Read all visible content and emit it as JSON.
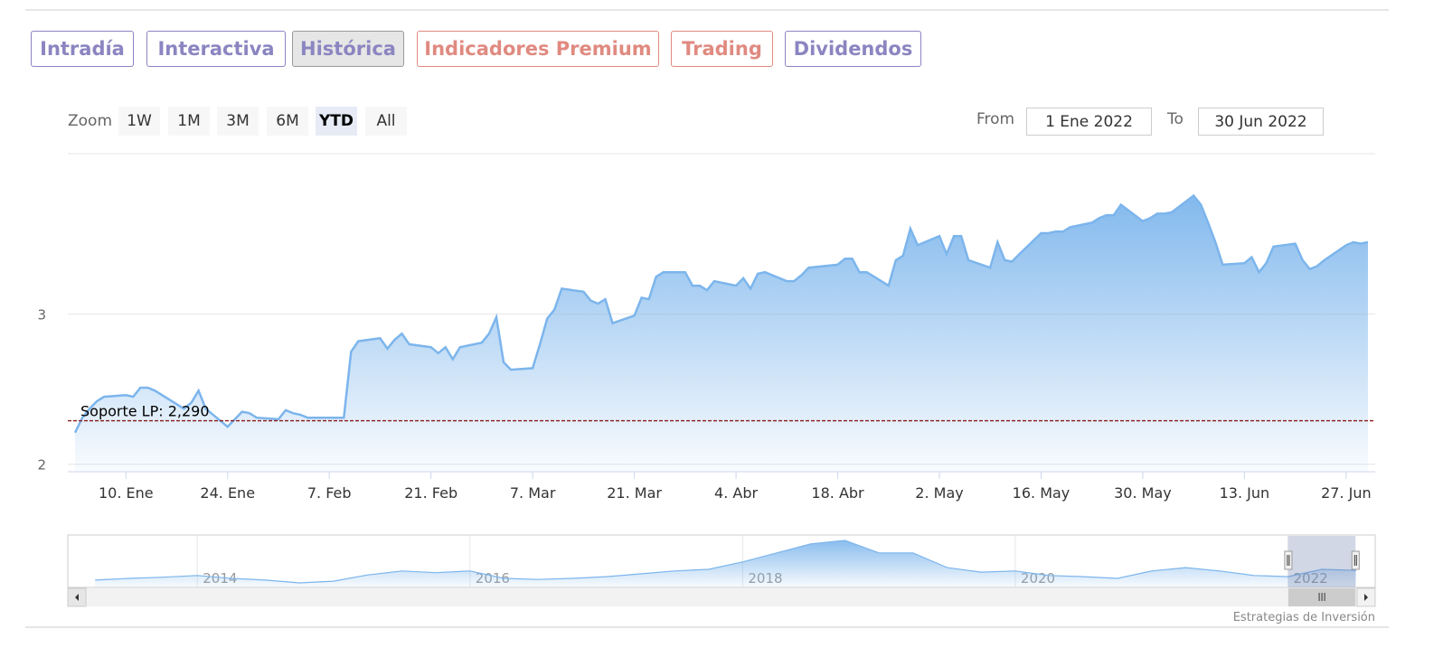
{
  "tabs": [
    "Intradía",
    "Interactiva",
    "Histórica",
    "Indicadores Premium",
    "Trading",
    "Dividendos"
  ],
  "zoom": {
    "label": "Zoom",
    "buttons": [
      "1W",
      "1M",
      "3M",
      "6M",
      "YTD",
      "All"
    ],
    "selected": 4
  },
  "range": {
    "from_label": "From",
    "from": "1 Ene 2022",
    "to_label": "To",
    "to": "30 Jun 2022"
  },
  "credits": "Estrategias de Inversión",
  "chart_data": {
    "type": "area",
    "color": "#7cb5ec",
    "xlim": [
      "2022-01-02",
      "2022-07-01"
    ],
    "ylim": [
      1.95,
      4.07
    ],
    "yticks": [
      2,
      3
    ],
    "grid": true,
    "xticks": [
      {
        "value": "2022-01-10",
        "label": "10. Ene"
      },
      {
        "value": "2022-01-24",
        "label": "24. Ene"
      },
      {
        "value": "2022-02-07",
        "label": "7. Feb"
      },
      {
        "value": "2022-02-21",
        "label": "21. Feb"
      },
      {
        "value": "2022-03-07",
        "label": "7. Mar"
      },
      {
        "value": "2022-03-21",
        "label": "21. Mar"
      },
      {
        "value": "2022-04-04",
        "label": "4. Abr"
      },
      {
        "value": "2022-04-18",
        "label": "18. Abr"
      },
      {
        "value": "2022-05-02",
        "label": "2. May"
      },
      {
        "value": "2022-05-16",
        "label": "16. May"
      },
      {
        "value": "2022-05-30",
        "label": "30. May"
      },
      {
        "value": "2022-06-13",
        "label": "13. Jun"
      },
      {
        "value": "2022-06-27",
        "label": "27. Jun"
      }
    ],
    "plot_lines": [
      {
        "value": 2.29,
        "label": "Soporte LP: 2,290",
        "color": "#8b1a1a"
      }
    ],
    "x": [
      "2022-01-03",
      "2022-01-04",
      "2022-01-05",
      "2022-01-06",
      "2022-01-07",
      "2022-01-10",
      "2022-01-11",
      "2022-01-12",
      "2022-01-13",
      "2022-01-14",
      "2022-01-17",
      "2022-01-18",
      "2022-01-19",
      "2022-01-20",
      "2022-01-21",
      "2022-01-24",
      "2022-01-25",
      "2022-01-26",
      "2022-01-27",
      "2022-01-28",
      "2022-01-31",
      "2022-02-01",
      "2022-02-02",
      "2022-02-03",
      "2022-02-04",
      "2022-02-07",
      "2022-02-08",
      "2022-02-09",
      "2022-02-10",
      "2022-02-11",
      "2022-02-14",
      "2022-02-15",
      "2022-02-16",
      "2022-02-17",
      "2022-02-18",
      "2022-02-21",
      "2022-02-22",
      "2022-02-23",
      "2022-02-24",
      "2022-02-25",
      "2022-02-28",
      "2022-03-01",
      "2022-03-02",
      "2022-03-03",
      "2022-03-04",
      "2022-03-07",
      "2022-03-08",
      "2022-03-09",
      "2022-03-10",
      "2022-03-11",
      "2022-03-14",
      "2022-03-15",
      "2022-03-16",
      "2022-03-17",
      "2022-03-18",
      "2022-03-21",
      "2022-03-22",
      "2022-03-23",
      "2022-03-24",
      "2022-03-25",
      "2022-03-28",
      "2022-03-29",
      "2022-03-30",
      "2022-03-31",
      "2022-04-01",
      "2022-04-04",
      "2022-04-05",
      "2022-04-06",
      "2022-04-07",
      "2022-04-08",
      "2022-04-11",
      "2022-04-12",
      "2022-04-13",
      "2022-04-14",
      "2022-04-18",
      "2022-04-19",
      "2022-04-20",
      "2022-04-21",
      "2022-04-22",
      "2022-04-25",
      "2022-04-26",
      "2022-04-27",
      "2022-04-28",
      "2022-04-29",
      "2022-05-02",
      "2022-05-03",
      "2022-05-04",
      "2022-05-05",
      "2022-05-06",
      "2022-05-09",
      "2022-05-10",
      "2022-05-11",
      "2022-05-12",
      "2022-05-13",
      "2022-05-16",
      "2022-05-17",
      "2022-05-18",
      "2022-05-19",
      "2022-05-20",
      "2022-05-23",
      "2022-05-24",
      "2022-05-25",
      "2022-05-26",
      "2022-05-27",
      "2022-05-30",
      "2022-05-31",
      "2022-06-01",
      "2022-06-02",
      "2022-06-03",
      "2022-06-06",
      "2022-06-07",
      "2022-06-08",
      "2022-06-09",
      "2022-06-10",
      "2022-06-13",
      "2022-06-14",
      "2022-06-15",
      "2022-06-16",
      "2022-06-17",
      "2022-06-20",
      "2022-06-21",
      "2022-06-22",
      "2022-06-23",
      "2022-06-24",
      "2022-06-27",
      "2022-06-28",
      "2022-06-29",
      "2022-06-30"
    ],
    "values": [
      2.21,
      2.31,
      2.37,
      2.42,
      2.45,
      2.46,
      2.45,
      2.51,
      2.51,
      2.49,
      2.4,
      2.37,
      2.41,
      2.49,
      2.37,
      2.25,
      2.3,
      2.35,
      2.34,
      2.31,
      2.3,
      2.36,
      2.34,
      2.33,
      2.31,
      2.31,
      2.31,
      2.31,
      2.75,
      2.82,
      2.84,
      2.77,
      2.83,
      2.87,
      2.8,
      2.78,
      2.74,
      2.78,
      2.7,
      2.78,
      2.81,
      2.87,
      2.98,
      2.68,
      2.63,
      2.64,
      2.8,
      2.97,
      3.03,
      3.17,
      3.15,
      3.09,
      3.07,
      3.1,
      2.94,
      2.99,
      3.11,
      3.1,
      3.25,
      3.28,
      3.28,
      3.19,
      3.19,
      3.16,
      3.22,
      3.19,
      3.24,
      3.17,
      3.27,
      3.28,
      3.22,
      3.22,
      3.26,
      3.31,
      3.33,
      3.37,
      3.37,
      3.28,
      3.28,
      3.19,
      3.36,
      3.39,
      3.57,
      3.46,
      3.52,
      3.4,
      3.52,
      3.52,
      3.36,
      3.31,
      3.48,
      3.36,
      3.35,
      3.4,
      3.54,
      3.54,
      3.55,
      3.55,
      3.58,
      3.61,
      3.64,
      3.66,
      3.66,
      3.73,
      3.62,
      3.64,
      3.67,
      3.67,
      3.68,
      3.79,
      3.73,
      3.61,
      3.48,
      3.33,
      3.34,
      3.38,
      3.28,
      3.34,
      3.45,
      3.47,
      3.36,
      3.3,
      3.32,
      3.36,
      3.46,
      3.48,
      3.47,
      3.48
    ],
    "navigator": {
      "xlim": [
        2013.05,
        2022.64
      ],
      "ylim": [
        0.3,
        9.4
      ],
      "xticks": [
        2014,
        2016,
        2018,
        2020,
        2022
      ],
      "x": [
        2013.25,
        2013.5,
        2013.75,
        2014,
        2014.25,
        2014.5,
        2014.75,
        2015,
        2015.25,
        2015.5,
        2015.75,
        2016,
        2016.25,
        2016.5,
        2016.75,
        2017,
        2017.25,
        2017.5,
        2017.75,
        2018,
        2018.25,
        2018.5,
        2018.75,
        2019,
        2019.25,
        2019.5,
        2019.75,
        2020,
        2020.25,
        2020.5,
        2020.75,
        2021,
        2021.25,
        2021.5,
        2021.75,
        2022,
        2022.25,
        2022.5
      ],
      "values": [
        1.6,
        1.9,
        2.1,
        2.4,
        1.9,
        1.6,
        1.1,
        1.4,
        2.5,
        3.2,
        2.9,
        3.2,
        1.9,
        1.7,
        1.9,
        2.2,
        2.7,
        3.2,
        3.5,
        4.8,
        6.4,
        8.0,
        8.6,
        6.4,
        6.4,
        3.8,
        3.0,
        3.2,
        2.4,
        2.2,
        1.9,
        3.2,
        3.8,
        3.2,
        2.4,
        2.2,
        3.5,
        3.3
      ]
    }
  }
}
